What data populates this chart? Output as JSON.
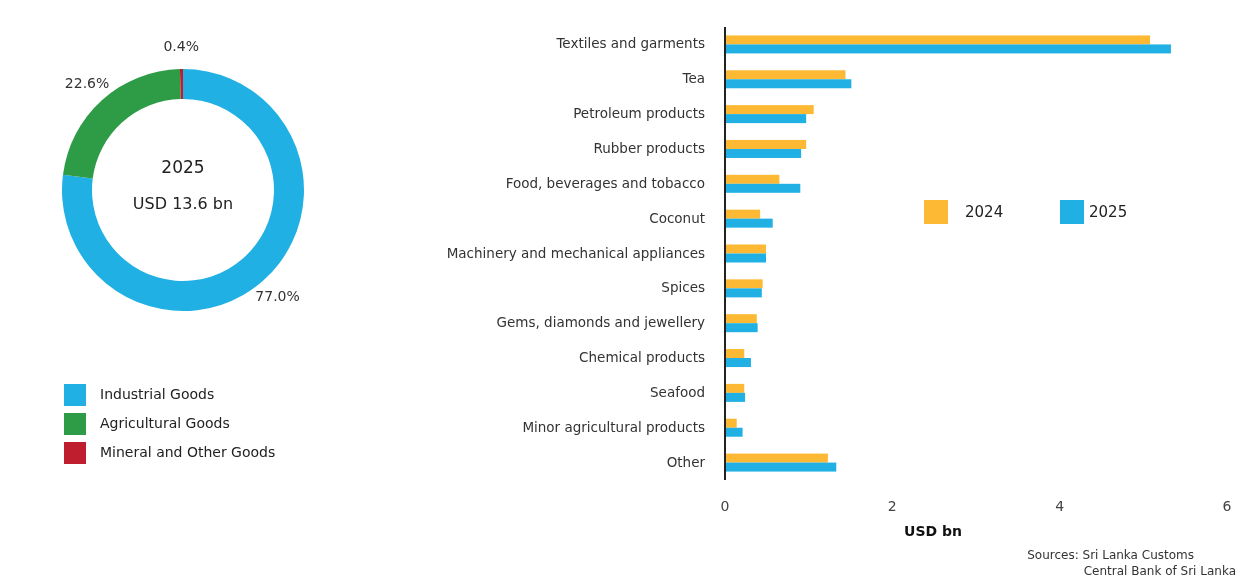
{
  "chart_data": [
    {
      "type": "donut",
      "categories": [
        "Industrial Goods",
        "Agricultural Goods",
        "Mineral and Other Goods"
      ],
      "values": [
        77.0,
        22.6,
        0.4
      ],
      "colors": [
        "#21b0e3",
        "#2e9b47",
        "#be1e2d"
      ],
      "value_labels": [
        "77.0%",
        "22.6%",
        "0.4%"
      ],
      "annotations": [
        "2025",
        "USD 13.6 bn"
      ],
      "legend": "bottom left"
    },
    {
      "type": "bar",
      "orientation": "horizontal",
      "categories": [
        "Textiles and garments",
        "Tea",
        "Petroleum products",
        "Rubber products",
        "Food, beverages and tobacco",
        "Coconut",
        "Machinery and mechanical appliances",
        "Spices",
        "Gems, diamonds and jewellery",
        "Chemical products",
        "Seafood",
        "Minor agricultural products",
        "Other"
      ],
      "series": [
        {
          "name": "2024",
          "color": "#fdb933",
          "values": [
            5.08,
            1.44,
            1.06,
            0.97,
            0.65,
            0.42,
            0.49,
            0.45,
            0.38,
            0.23,
            0.23,
            0.14,
            1.23
          ]
        },
        {
          "name": "2025",
          "color": "#21b0e3",
          "values": [
            5.33,
            1.51,
            0.97,
            0.91,
            0.9,
            0.57,
            0.49,
            0.44,
            0.39,
            0.31,
            0.24,
            0.21,
            1.33
          ]
        }
      ],
      "xlim": [
        0,
        6
      ],
      "xticks": [
        0,
        2,
        4,
        6
      ],
      "xlabel": "USD bn",
      "legend": "right",
      "grid": false,
      "annotations": [
        "Sources: Sri Lanka Customs",
        "Central Bank of Sri Lanka"
      ]
    }
  ]
}
